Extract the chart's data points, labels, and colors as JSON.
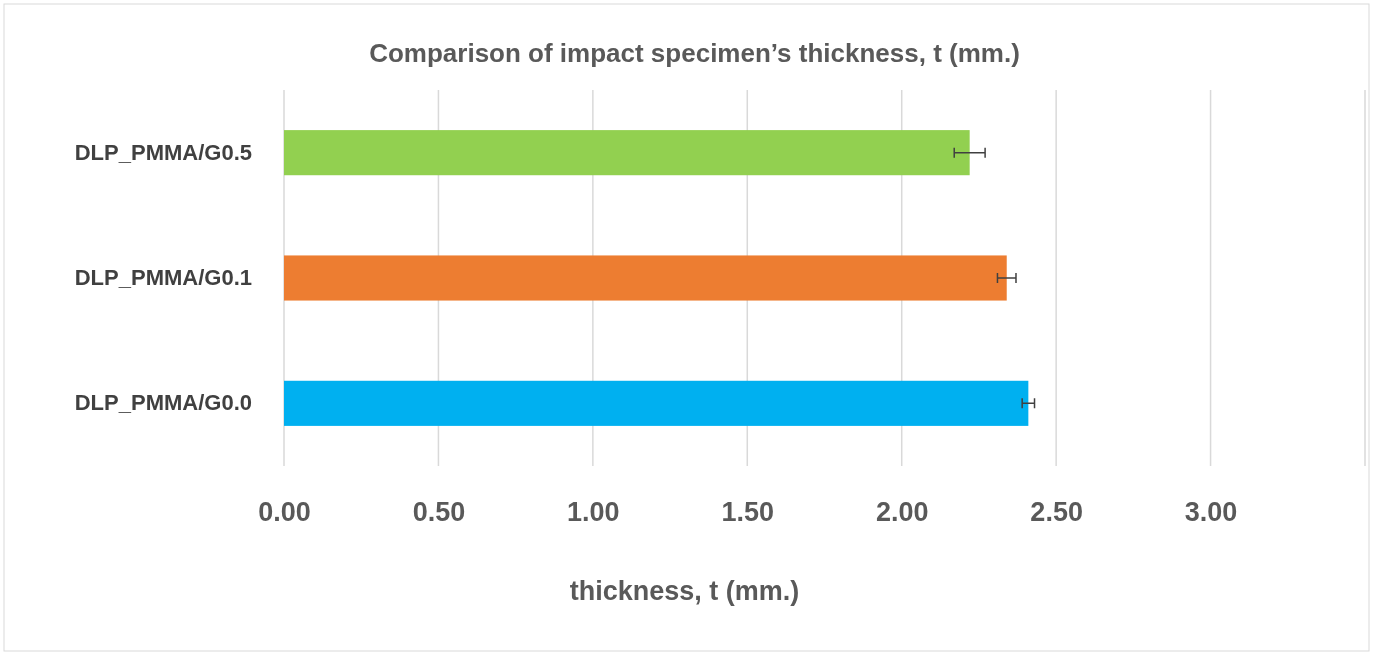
{
  "chart_data": {
    "type": "bar",
    "orientation": "horizontal",
    "title": "Comparison of impact specimen’s thickness, t (mm.)",
    "xlabel": "thickness, t (mm.)",
    "categories": [
      "DLP_PMMA/G0.5",
      "DLP_PMMA/G0.1",
      "DLP_PMMA/G0.0"
    ],
    "values": [
      2.22,
      2.34,
      2.41
    ],
    "errors": [
      0.05,
      0.03,
      0.02
    ],
    "colors": [
      "#92d050",
      "#ed7d31",
      "#00b0f0"
    ],
    "xlim": [
      0,
      3.5
    ],
    "xticks": [
      {
        "value": 0,
        "label": "0.00"
      },
      {
        "value": 0.5,
        "label": "0.50"
      },
      {
        "value": 1,
        "label": "1.00"
      },
      {
        "value": 1.5,
        "label": "1.50"
      },
      {
        "value": 2,
        "label": "2.00"
      },
      {
        "value": 2.5,
        "label": "2.50"
      },
      {
        "value": 3,
        "label": "3.00"
      },
      {
        "value": 3.5,
        "label": null
      }
    ],
    "grid": "x"
  }
}
